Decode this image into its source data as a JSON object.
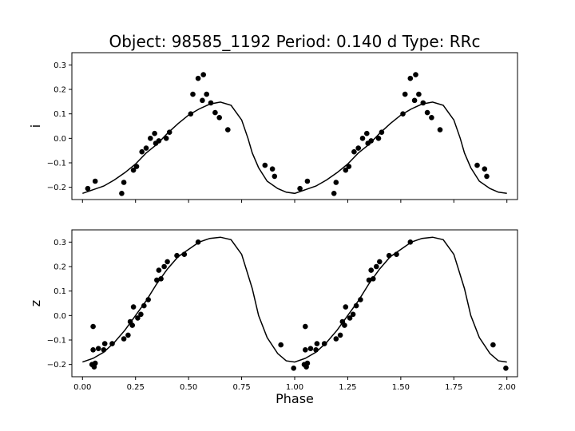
{
  "chart_data": {
    "type": "scatter",
    "title": "Object: 98585_1192    Period: 0.140 d    Type: RRc",
    "xlabel": "Phase",
    "xlim": [
      -0.05,
      2.05
    ],
    "xticks": [
      "0.00",
      "0.25",
      "0.50",
      "0.75",
      "1.00",
      "1.25",
      "1.50",
      "1.75",
      "2.00"
    ],
    "xtick_values": [
      0,
      0.25,
      0.5,
      0.75,
      1.0,
      1.25,
      1.5,
      1.75,
      2.0
    ],
    "colors": {
      "points": "#000000",
      "model": "#000000"
    },
    "panels": [
      {
        "ylabel": "i",
        "ylim": [
          -0.25,
          0.35
        ],
        "yticks": [
          "0.3",
          "0.2",
          "0.1",
          "0.0",
          "−0.1",
          "−0.2"
        ],
        "ytick_values": [
          0.3,
          0.2,
          0.1,
          0.0,
          -0.1,
          -0.2
        ],
        "points": [
          [
            0.025,
            -0.205
          ],
          [
            0.06,
            -0.175
          ],
          [
            0.185,
            -0.225
          ],
          [
            0.195,
            -0.18
          ],
          [
            0.24,
            -0.13
          ],
          [
            0.255,
            -0.115
          ],
          [
            0.28,
            -0.055
          ],
          [
            0.3,
            -0.04
          ],
          [
            0.32,
            0.0
          ],
          [
            0.34,
            0.02
          ],
          [
            0.345,
            -0.02
          ],
          [
            0.36,
            -0.01
          ],
          [
            0.395,
            0.0
          ],
          [
            0.41,
            0.025
          ],
          [
            0.51,
            0.1
          ],
          [
            0.52,
            0.18
          ],
          [
            0.545,
            0.245
          ],
          [
            0.565,
            0.155
          ],
          [
            0.57,
            0.26
          ],
          [
            0.585,
            0.18
          ],
          [
            0.605,
            0.145
          ],
          [
            0.625,
            0.105
          ],
          [
            0.645,
            0.085
          ],
          [
            0.685,
            0.035
          ],
          [
            0.86,
            -0.11
          ],
          [
            0.895,
            -0.125
          ],
          [
            0.905,
            -0.155
          ],
          [
            1.025,
            -0.205
          ],
          [
            1.06,
            -0.175
          ],
          [
            1.185,
            -0.225
          ],
          [
            1.195,
            -0.18
          ],
          [
            1.24,
            -0.13
          ],
          [
            1.255,
            -0.115
          ],
          [
            1.28,
            -0.055
          ],
          [
            1.3,
            -0.04
          ],
          [
            1.32,
            0.0
          ],
          [
            1.34,
            0.02
          ],
          [
            1.345,
            -0.02
          ],
          [
            1.36,
            -0.01
          ],
          [
            1.395,
            0.0
          ],
          [
            1.41,
            0.025
          ],
          [
            1.51,
            0.1
          ],
          [
            1.52,
            0.18
          ],
          [
            1.545,
            0.245
          ],
          [
            1.565,
            0.155
          ],
          [
            1.57,
            0.26
          ],
          [
            1.585,
            0.18
          ],
          [
            1.605,
            0.145
          ],
          [
            1.625,
            0.105
          ],
          [
            1.645,
            0.085
          ],
          [
            1.685,
            0.035
          ],
          [
            1.86,
            -0.11
          ],
          [
            1.895,
            -0.125
          ],
          [
            1.905,
            -0.155
          ]
        ],
        "model": [
          [
            0.0,
            -0.225
          ],
          [
            0.05,
            -0.21
          ],
          [
            0.1,
            -0.195
          ],
          [
            0.15,
            -0.17
          ],
          [
            0.2,
            -0.14
          ],
          [
            0.25,
            -0.105
          ],
          [
            0.3,
            -0.06
          ],
          [
            0.35,
            -0.025
          ],
          [
            0.4,
            0.02
          ],
          [
            0.45,
            0.06
          ],
          [
            0.5,
            0.095
          ],
          [
            0.55,
            0.12
          ],
          [
            0.6,
            0.14
          ],
          [
            0.65,
            0.148
          ],
          [
            0.7,
            0.135
          ],
          [
            0.75,
            0.075
          ],
          [
            0.78,
            0.0
          ],
          [
            0.8,
            -0.06
          ],
          [
            0.83,
            -0.12
          ],
          [
            0.87,
            -0.175
          ],
          [
            0.92,
            -0.205
          ],
          [
            0.96,
            -0.22
          ],
          [
            1.0,
            -0.225
          ],
          [
            1.05,
            -0.21
          ],
          [
            1.1,
            -0.195
          ],
          [
            1.15,
            -0.17
          ],
          [
            1.2,
            -0.14
          ],
          [
            1.25,
            -0.105
          ],
          [
            1.3,
            -0.06
          ],
          [
            1.35,
            -0.025
          ],
          [
            1.4,
            0.02
          ],
          [
            1.45,
            0.06
          ],
          [
            1.5,
            0.095
          ],
          [
            1.55,
            0.12
          ],
          [
            1.6,
            0.14
          ],
          [
            1.65,
            0.148
          ],
          [
            1.7,
            0.135
          ],
          [
            1.75,
            0.075
          ],
          [
            1.78,
            0.0
          ],
          [
            1.8,
            -0.06
          ],
          [
            1.83,
            -0.12
          ],
          [
            1.87,
            -0.175
          ],
          [
            1.92,
            -0.205
          ],
          [
            1.96,
            -0.22
          ],
          [
            2.0,
            -0.225
          ]
        ]
      },
      {
        "ylabel": "z",
        "ylim": [
          -0.25,
          0.35
        ],
        "yticks": [
          "0.3",
          "0.2",
          "0.1",
          "0.0",
          "−0.1",
          "−0.2"
        ],
        "ytick_values": [
          0.3,
          0.2,
          0.1,
          0.0,
          -0.1,
          -0.2
        ],
        "points": [
          [
            0.045,
            -0.2
          ],
          [
            0.05,
            -0.045
          ],
          [
            0.05,
            -0.14
          ],
          [
            0.055,
            -0.21
          ],
          [
            0.06,
            -0.195
          ],
          [
            0.075,
            -0.135
          ],
          [
            0.1,
            -0.14
          ],
          [
            0.105,
            -0.115
          ],
          [
            0.14,
            -0.115
          ],
          [
            0.195,
            -0.095
          ],
          [
            0.215,
            -0.08
          ],
          [
            0.225,
            -0.025
          ],
          [
            0.235,
            -0.04
          ],
          [
            0.24,
            0.035
          ],
          [
            0.26,
            -0.01
          ],
          [
            0.275,
            0.005
          ],
          [
            0.29,
            0.04
          ],
          [
            0.31,
            0.065
          ],
          [
            0.35,
            0.145
          ],
          [
            0.36,
            0.185
          ],
          [
            0.37,
            0.15
          ],
          [
            0.385,
            0.2
          ],
          [
            0.4,
            0.22
          ],
          [
            0.445,
            0.245
          ],
          [
            0.48,
            0.25
          ],
          [
            0.545,
            0.3
          ],
          [
            0.935,
            -0.12
          ],
          [
            0.995,
            -0.215
          ],
          [
            1.045,
            -0.2
          ],
          [
            1.05,
            -0.045
          ],
          [
            1.05,
            -0.14
          ],
          [
            1.055,
            -0.21
          ],
          [
            1.06,
            -0.195
          ],
          [
            1.075,
            -0.135
          ],
          [
            1.1,
            -0.14
          ],
          [
            1.105,
            -0.115
          ],
          [
            1.14,
            -0.115
          ],
          [
            1.195,
            -0.095
          ],
          [
            1.215,
            -0.08
          ],
          [
            1.225,
            -0.025
          ],
          [
            1.235,
            -0.04
          ],
          [
            1.24,
            0.035
          ],
          [
            1.26,
            -0.01
          ],
          [
            1.275,
            0.005
          ],
          [
            1.29,
            0.04
          ],
          [
            1.31,
            0.065
          ],
          [
            1.35,
            0.145
          ],
          [
            1.36,
            0.185
          ],
          [
            1.37,
            0.15
          ],
          [
            1.385,
            0.2
          ],
          [
            1.4,
            0.22
          ],
          [
            1.445,
            0.245
          ],
          [
            1.48,
            0.25
          ],
          [
            1.545,
            0.3
          ],
          [
            1.935,
            -0.12
          ],
          [
            1.995,
            -0.215
          ]
        ],
        "model": [
          [
            0.0,
            -0.19
          ],
          [
            0.05,
            -0.175
          ],
          [
            0.1,
            -0.15
          ],
          [
            0.15,
            -0.11
          ],
          [
            0.2,
            -0.06
          ],
          [
            0.25,
            0.0
          ],
          [
            0.3,
            0.06
          ],
          [
            0.35,
            0.13
          ],
          [
            0.4,
            0.19
          ],
          [
            0.45,
            0.24
          ],
          [
            0.5,
            0.27
          ],
          [
            0.55,
            0.3
          ],
          [
            0.6,
            0.315
          ],
          [
            0.65,
            0.32
          ],
          [
            0.7,
            0.31
          ],
          [
            0.75,
            0.25
          ],
          [
            0.8,
            0.11
          ],
          [
            0.83,
            0.0
          ],
          [
            0.87,
            -0.09
          ],
          [
            0.92,
            -0.155
          ],
          [
            0.96,
            -0.185
          ],
          [
            1.0,
            -0.19
          ],
          [
            1.05,
            -0.175
          ],
          [
            1.1,
            -0.15
          ],
          [
            1.15,
            -0.11
          ],
          [
            1.2,
            -0.06
          ],
          [
            1.25,
            0.0
          ],
          [
            1.3,
            0.06
          ],
          [
            1.35,
            0.13
          ],
          [
            1.4,
            0.19
          ],
          [
            1.45,
            0.24
          ],
          [
            1.5,
            0.27
          ],
          [
            1.55,
            0.3
          ],
          [
            1.6,
            0.315
          ],
          [
            1.65,
            0.32
          ],
          [
            1.7,
            0.31
          ],
          [
            1.75,
            0.25
          ],
          [
            1.8,
            0.11
          ],
          [
            1.83,
            0.0
          ],
          [
            1.87,
            -0.09
          ],
          [
            1.92,
            -0.155
          ],
          [
            1.96,
            -0.185
          ],
          [
            2.0,
            -0.19
          ]
        ]
      }
    ]
  }
}
